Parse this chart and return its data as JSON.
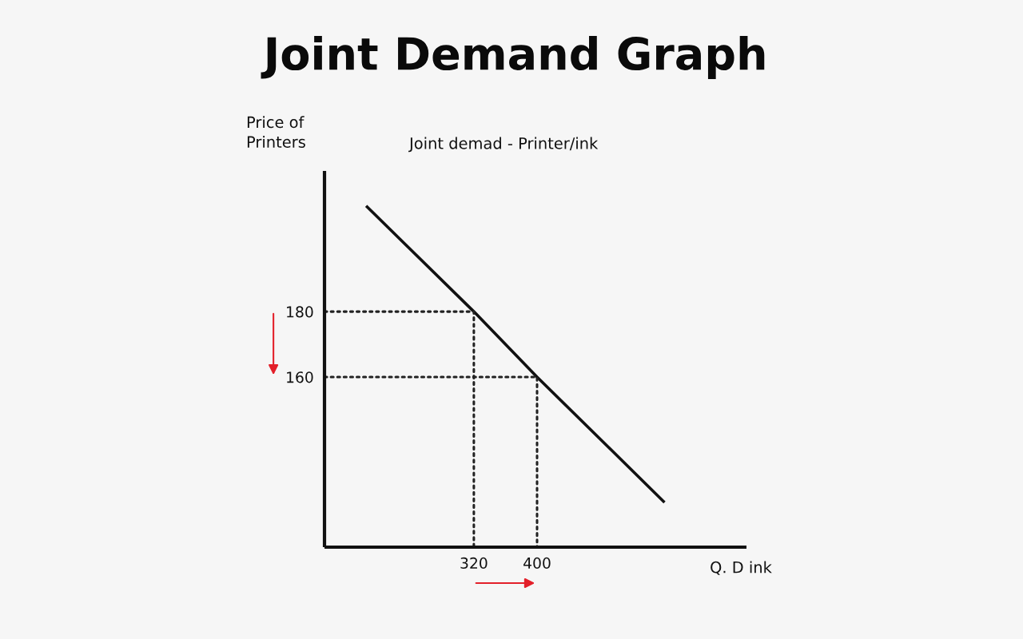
{
  "chart_data": {
    "type": "line",
    "title": "Joint Demand Graph",
    "subtitle": "Joint demad - Printer/ink",
    "xlabel": "Q. D ink",
    "ylabel": "Price of\nPrinters",
    "series": [
      {
        "color": "#111111",
        "line_style": "solid",
        "x": [
          185,
          320,
          400,
          560
        ],
        "values": [
          212,
          180,
          160,
          122
        ]
      },
      {
        "color": "#222222",
        "line_style": "dotted",
        "x": [
          131,
          320,
          320
        ],
        "values": [
          180,
          180,
          108
        ]
      },
      {
        "color": "#222222",
        "line_style": "dotted",
        "x": [
          131,
          400,
          400
        ],
        "values": [
          160,
          160,
          108
        ]
      }
    ],
    "xlim": [
      131,
      665
    ],
    "ylim": [
      108,
      223
    ],
    "xticks": [
      320,
      400
    ],
    "yticks": [
      180,
      160
    ]
  }
}
